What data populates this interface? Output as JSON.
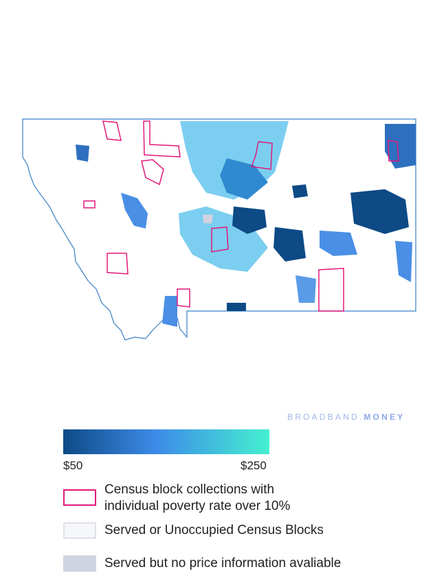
{
  "watermark": {
    "brand": "BROADBAND.",
    "suffix": "MONEY"
  },
  "color_scale": {
    "min_label": "$50",
    "max_label": "$250"
  },
  "legend": {
    "items": [
      {
        "label": "Census block collections with individual poverty rate over 10%"
      },
      {
        "label": "Served or Unoccupied Census Blocks"
      },
      {
        "label": "Served but no price information avaliable"
      }
    ]
  }
}
